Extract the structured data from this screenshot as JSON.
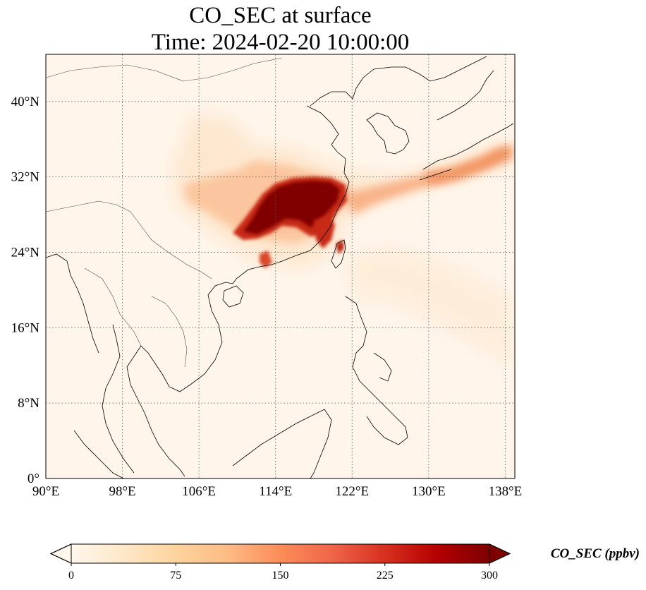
{
  "title": {
    "line1": "CO_SEC at surface",
    "line2": "Time: 2024-02-20 10:00:00"
  },
  "map": {
    "lon_range": [
      90,
      139
    ],
    "lat_range": [
      0,
      45
    ],
    "lon_ticks": [
      {
        "value": 90,
        "label": "90°E"
      },
      {
        "value": 98,
        "label": "98°E"
      },
      {
        "value": 106,
        "label": "106°E"
      },
      {
        "value": 114,
        "label": "114°E"
      },
      {
        "value": 122,
        "label": "122°E"
      },
      {
        "value": 130,
        "label": "130°E"
      },
      {
        "value": 138,
        "label": "138°E"
      }
    ],
    "lat_ticks": [
      {
        "value": 0,
        "label": "0°"
      },
      {
        "value": 8,
        "label": "8°N"
      },
      {
        "value": 16,
        "label": "16°N"
      },
      {
        "value": 24,
        "label": "24°N"
      },
      {
        "value": 32,
        "label": "32°N"
      },
      {
        "value": 40,
        "label": "40°N"
      }
    ],
    "gridlines": true,
    "field_colors": {
      "background": "#fff5eb",
      "low": "#fdd8b0",
      "mid": "#f08a55",
      "high": "#c41e0a",
      "max": "#7f0000"
    },
    "coastline_color": "#000000"
  },
  "colorbar": {
    "label": "CO_SEC (ppbv)",
    "min": 0,
    "max": 300,
    "extend": "both",
    "ticks": [
      {
        "value": 0,
        "label": "0"
      },
      {
        "value": 75,
        "label": "75"
      },
      {
        "value": 150,
        "label": "150"
      },
      {
        "value": 225,
        "label": "225"
      },
      {
        "value": 300,
        "label": "300"
      }
    ],
    "colormap": "OrRd",
    "stops": [
      "#fff7ec",
      "#fee8c8",
      "#fdd49e",
      "#fdbb84",
      "#fc8d59",
      "#ef6548",
      "#d7301f",
      "#b30000",
      "#7f0000"
    ]
  }
}
